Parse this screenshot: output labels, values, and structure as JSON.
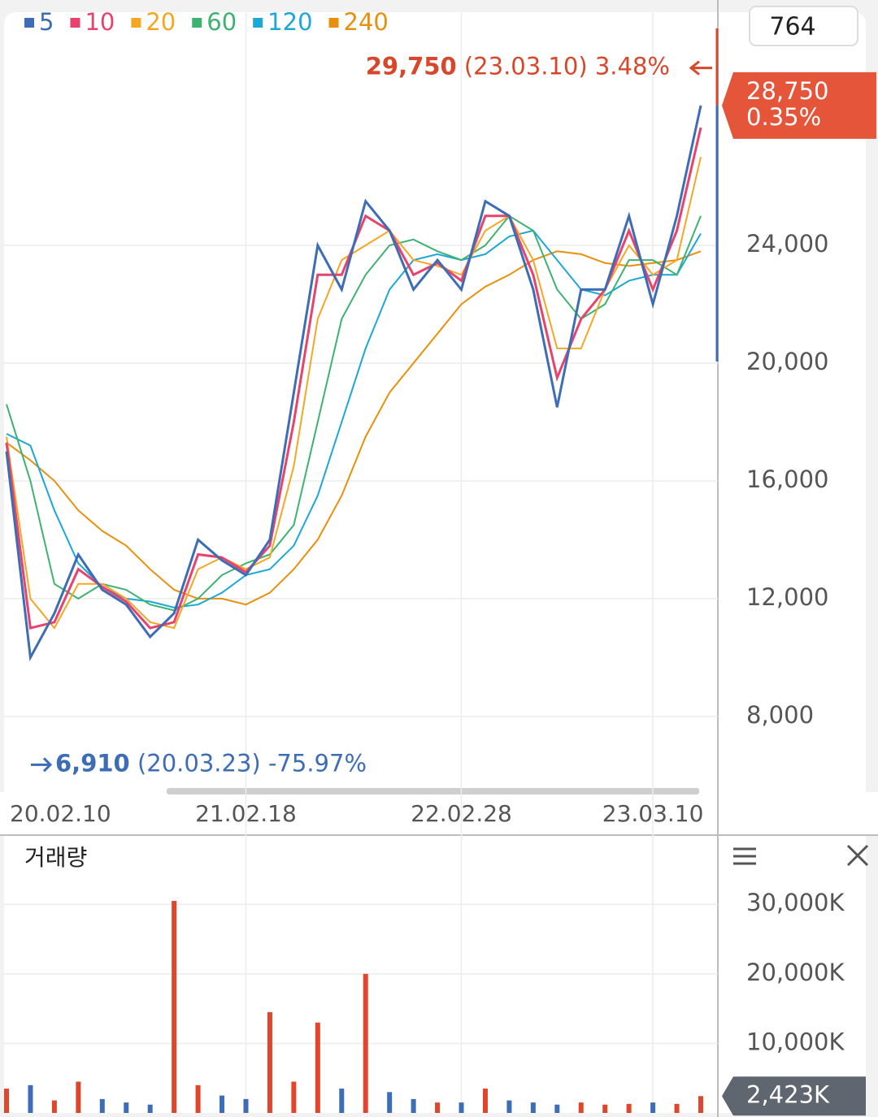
{
  "chart_data": [
    {
      "type": "line",
      "candle_count": 764,
      "categories": [
        "20.02.10",
        null,
        null,
        null,
        null,
        null,
        null,
        null,
        null,
        null,
        "21.02.18",
        null,
        null,
        null,
        null,
        null,
        null,
        null,
        null,
        "22.02.28",
        null,
        null,
        null,
        null,
        null,
        null,
        null,
        "23.03.10",
        null,
        null
      ],
      "series": [
        {
          "name": "5",
          "color": "#3d6db5",
          "values": [
            17000,
            10000,
            11500,
            13500,
            12300,
            11800,
            10700,
            11500,
            14000,
            13300,
            12800,
            14000,
            19000,
            24000,
            22500,
            25500,
            24500,
            22500,
            23500,
            22500,
            25500,
            25000,
            22500,
            18500,
            22500,
            22500,
            25000,
            22000,
            25000,
            28750
          ]
        },
        {
          "name": "10",
          "color": "#e8436e",
          "values": [
            17300,
            11000,
            11200,
            13000,
            12400,
            11900,
            11000,
            11200,
            13500,
            13400,
            12900,
            13800,
            18000,
            23000,
            23000,
            25000,
            24500,
            23000,
            23400,
            22800,
            25000,
            25000,
            23000,
            19500,
            21500,
            22500,
            24500,
            22500,
            24500,
            28000
          ]
        },
        {
          "name": "20",
          "color": "#f5a623",
          "values": [
            17500,
            12000,
            11000,
            12500,
            12500,
            12000,
            11200,
            11000,
            13000,
            13400,
            13000,
            13400,
            16500,
            21500,
            23500,
            24000,
            24500,
            23500,
            23300,
            23000,
            24500,
            25000,
            23500,
            20500,
            20500,
            22500,
            24000,
            23000,
            23500,
            27000
          ]
        },
        {
          "name": "60",
          "color": "#3cb371",
          "values": [
            18600,
            16000,
            12500,
            12000,
            12500,
            12300,
            11800,
            11600,
            12000,
            12800,
            13200,
            13500,
            14500,
            18000,
            21500,
            23000,
            24000,
            24200,
            23800,
            23500,
            24000,
            25000,
            24500,
            22500,
            21500,
            22000,
            23500,
            23500,
            23000,
            25000
          ]
        },
        {
          "name": "120",
          "color": "#1ba8d8",
          "values": [
            17600,
            17200,
            15000,
            13200,
            12400,
            12000,
            11900,
            11700,
            11800,
            12200,
            12800,
            13000,
            13800,
            15500,
            18000,
            20500,
            22500,
            23500,
            23700,
            23500,
            23700,
            24300,
            24500,
            23500,
            22500,
            22300,
            22800,
            23000,
            23000,
            24400
          ]
        },
        {
          "name": "240",
          "color": "#e8900c",
          "values": [
            17300,
            16700,
            16000,
            15000,
            14300,
            13800,
            13000,
            12300,
            12000,
            12000,
            11800,
            12200,
            13000,
            14000,
            15500,
            17500,
            19000,
            20000,
            21000,
            22000,
            22600,
            23000,
            23500,
            23800,
            23700,
            23400,
            23300,
            23400,
            23500,
            23800
          ]
        }
      ],
      "ylim": [
        5430,
        31920
      ],
      "yticks": [
        {
          "value": 8000,
          "label": "8,000"
        },
        {
          "value": 12000,
          "label": "12,000"
        },
        {
          "value": 16000,
          "label": "16,000"
        },
        {
          "value": 20000,
          "label": "20,000"
        },
        {
          "value": 24000,
          "label": "24,000"
        }
      ],
      "grid": true,
      "high": {
        "value": 29750,
        "label": "29,750",
        "date": "(23.03.10)",
        "change": "3.48%"
      },
      "low": {
        "value": 6910,
        "label": "6,910",
        "date": "(20.03.23)",
        "change": "-75.97%"
      },
      "current": {
        "value": 28750,
        "label": "28,750",
        "change": "0.35%"
      }
    },
    {
      "type": "bar",
      "title": "거래량",
      "values": [
        3500,
        4000,
        1800,
        4500,
        2000,
        1500,
        1200,
        30500,
        4000,
        2500,
        2000,
        14500,
        4500,
        13000,
        3500,
        20000,
        3000,
        2000,
        1500,
        1500,
        3500,
        1800,
        1500,
        1200,
        1500,
        1200,
        1300,
        1500,
        1300,
        2423
      ],
      "up_color": "#e0462c",
      "down_color": "#3d6db5",
      "ylim": [
        0,
        33300
      ],
      "yticks": [
        {
          "value": 10000,
          "label": "10,000K"
        },
        {
          "value": 20000,
          "label": "20,000K"
        },
        {
          "value": 30000,
          "label": "30,000K"
        }
      ],
      "grid": true,
      "current": {
        "value": 2423,
        "label": "2,423K"
      }
    }
  ]
}
